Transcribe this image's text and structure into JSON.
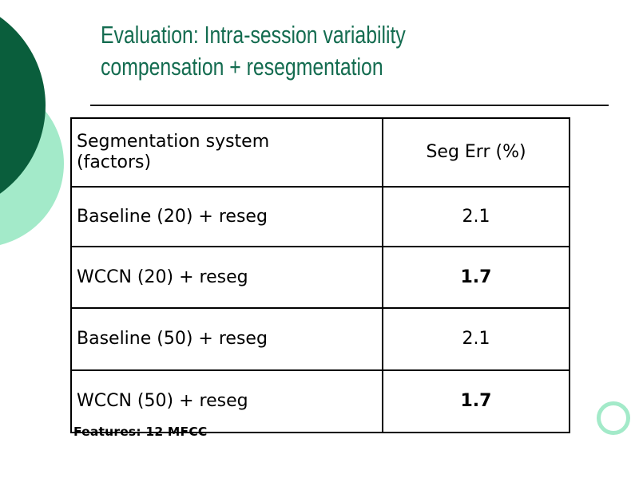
{
  "slide": {
    "title_line1": "Evaluation: Intra-session variability",
    "title_line2": "compensation + resegmentation",
    "footer_note": "Features: 12 MFCC"
  },
  "table": {
    "col_headers": {
      "system": "Segmentation system (factors)",
      "seg_err": "Seg Err (%)"
    },
    "rows": [
      {
        "system": "Baseline (20) + reseg",
        "seg_err": "2.1",
        "emphasis": "normal"
      },
      {
        "system": "WCCN (20) + reseg",
        "seg_err": "1.7",
        "emphasis": "bold"
      },
      {
        "system": "Baseline (50) + reseg",
        "seg_err": "2.1",
        "emphasis": "normal"
      },
      {
        "system": "WCCN (50) + reseg",
        "seg_err": "1.7",
        "emphasis": "bold"
      }
    ]
  },
  "colors": {
    "title_green": "#146c50",
    "dark_circle": "#0a5e3c",
    "light_circle": "#a3eac9",
    "table_border": "#000000",
    "underline": "#1a1a1a"
  }
}
